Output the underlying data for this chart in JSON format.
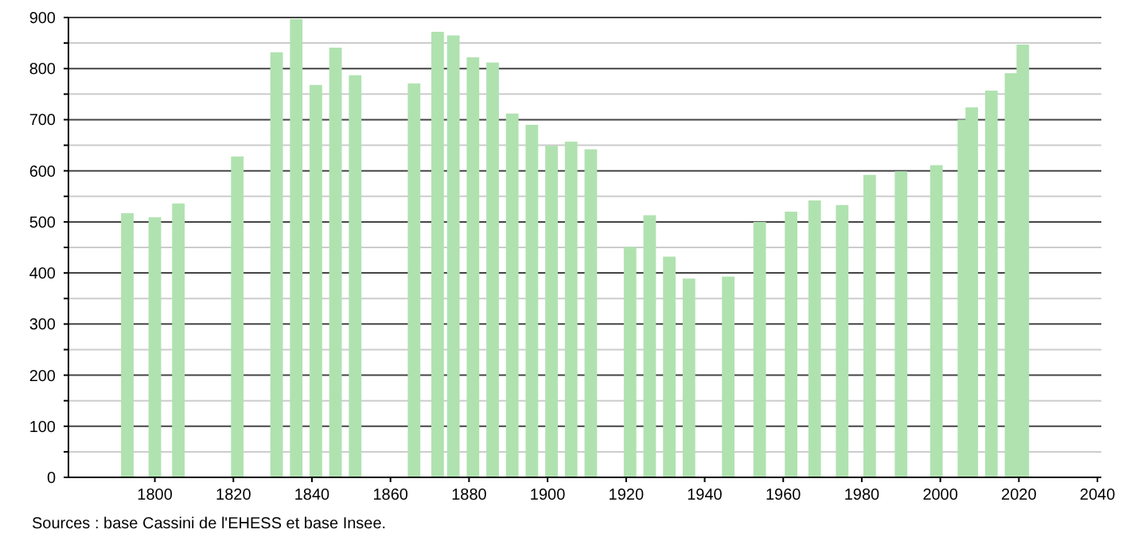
{
  "chart_data": {
    "type": "bar",
    "x": [
      1793,
      1800,
      1806,
      1821,
      1831,
      1836,
      1841,
      1846,
      1851,
      1866,
      1872,
      1876,
      1881,
      1886,
      1891,
      1896,
      1901,
      1906,
      1911,
      1921,
      1926,
      1931,
      1936,
      1946,
      1954,
      1962,
      1968,
      1975,
      1982,
      1990,
      1999,
      2006,
      2008,
      2013,
      2018,
      2021
    ],
    "values": [
      517,
      509,
      536,
      628,
      832,
      897,
      768,
      841,
      787,
      771,
      872,
      865,
      822,
      812,
      712,
      690,
      649,
      657,
      642,
      451,
      513,
      432,
      389,
      393,
      500,
      520,
      542,
      533,
      592,
      599,
      611,
      700,
      724,
      757,
      791,
      847
    ],
    "color": "#b0e2b0",
    "xlim": [
      1778,
      2041
    ],
    "xticks": [
      1800,
      1820,
      1840,
      1860,
      1880,
      1900,
      1920,
      1940,
      1960,
      1980,
      2000,
      2020,
      2040
    ],
    "ylim": [
      0,
      900
    ],
    "yticks": [
      0,
      {
        "value": 50,
        "label": null
      },
      100,
      {
        "value": 150,
        "label": null
      },
      200,
      {
        "value": 250,
        "label": null
      },
      300,
      {
        "value": 350,
        "label": null
      },
      400,
      {
        "value": 450,
        "label": null
      },
      500,
      {
        "value": 550,
        "label": null
      },
      600,
      {
        "value": 650,
        "label": null
      },
      700,
      {
        "value": 750,
        "label": null
      },
      800,
      {
        "value": 850,
        "label": null
      },
      900
    ],
    "grid": true,
    "annotations": [
      "Sources : base Cassini de l'EHESS et base Insee."
    ]
  }
}
